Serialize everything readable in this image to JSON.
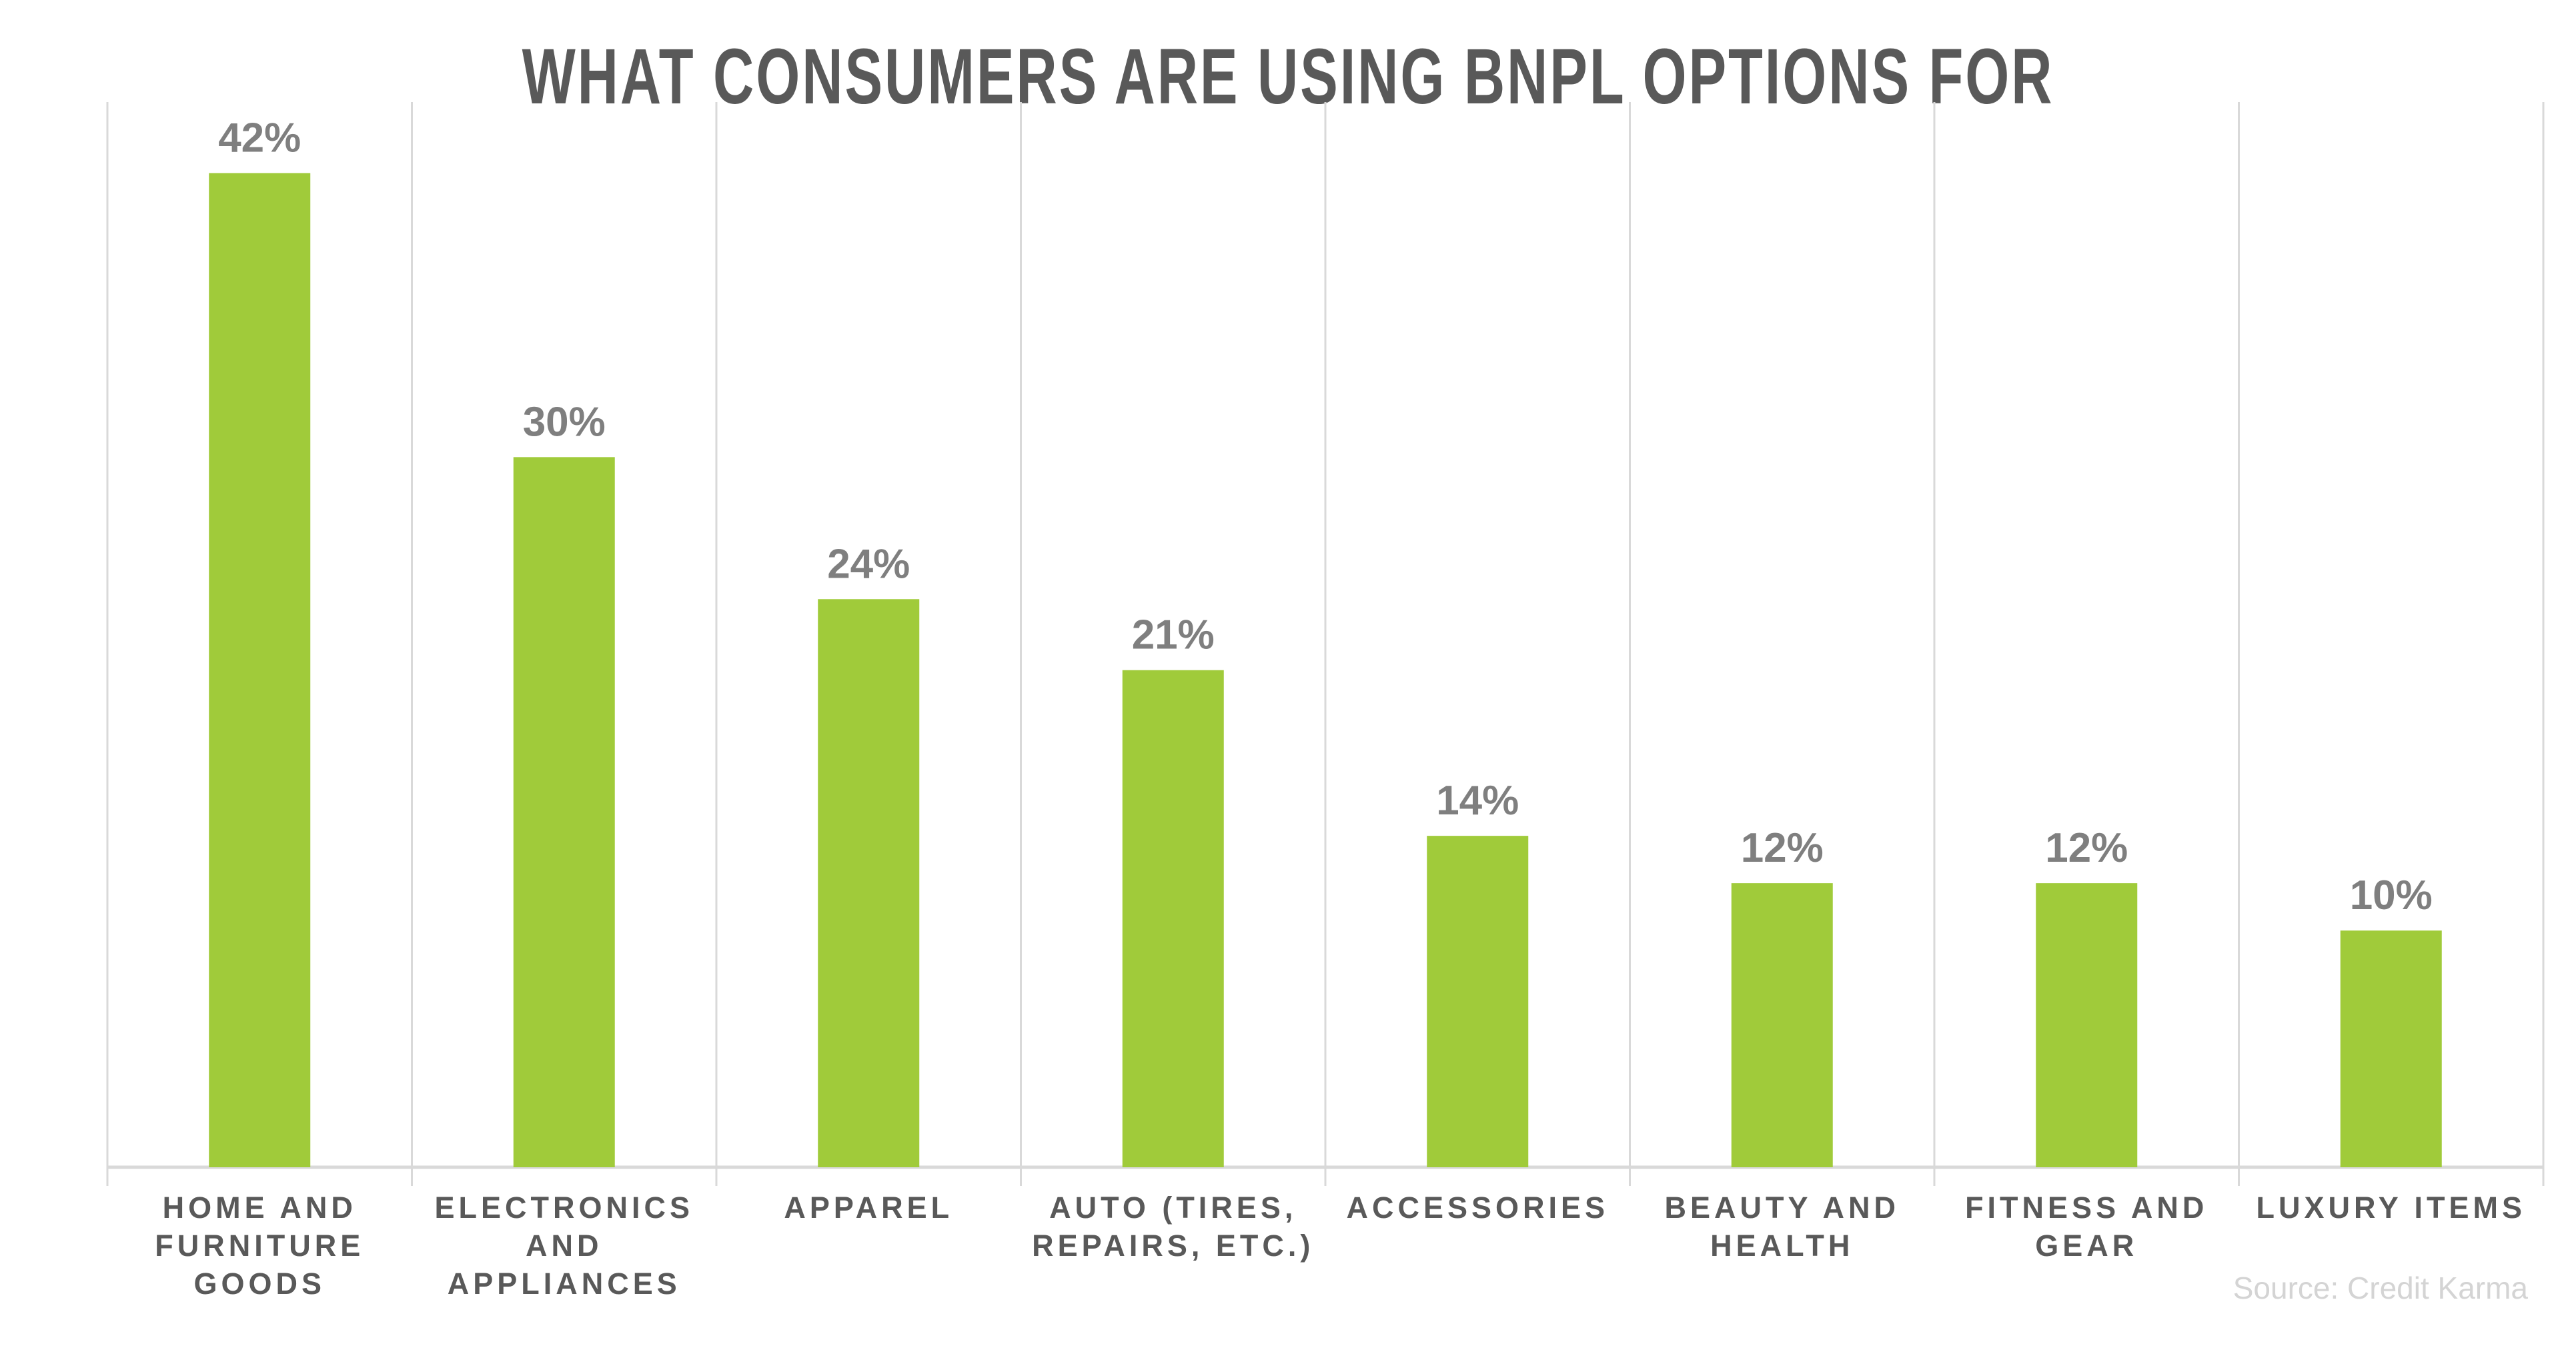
{
  "chart_data": {
    "type": "bar",
    "title": "WHAT CONSUMERS ARE USING BNPL OPTIONS FOR",
    "categories": [
      [
        "HOME AND",
        "FURNITURE",
        "GOODS"
      ],
      [
        "ELECTRONICS",
        "AND",
        "APPLIANCES"
      ],
      [
        "APPAREL"
      ],
      [
        "AUTO (TIRES,",
        "REPAIRS, ETC.)"
      ],
      [
        "ACCESSORIES"
      ],
      [
        "BEAUTY AND",
        "HEALTH"
      ],
      [
        "FITNESS AND",
        "GEAR"
      ],
      [
        "LUXURY ITEMS"
      ]
    ],
    "values": [
      42,
      30,
      24,
      21,
      14,
      12,
      12,
      10
    ],
    "value_labels": [
      "42%",
      "30%",
      "24%",
      "21%",
      "14%",
      "12%",
      "12%",
      "10%"
    ],
    "unit": "%",
    "xlabel": "",
    "ylabel": "",
    "ylim": [
      0,
      45
    ],
    "grid": "vertical category separators",
    "legend": "none",
    "bar_color": "#a0cb3a",
    "source": "Source: Credit Karma"
  }
}
